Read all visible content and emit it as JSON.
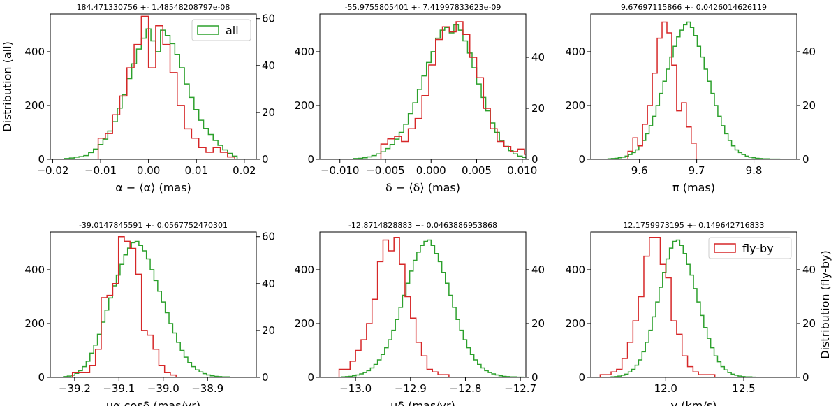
{
  "colors": {
    "all": "#2ca02c",
    "flyby": "#d62728"
  },
  "chart_data": [
    {
      "type": "histogram",
      "title": "184.471330756 +- 1.48548208797e-08",
      "xlabel": "α − ⟨α⟩ (mas)",
      "ylabel_left": "Distribution (all)",
      "ylabel_right": "",
      "legend": {
        "label": "all",
        "position": "top-right"
      },
      "xlim": [
        -0.0205,
        0.0225
      ],
      "ylim_left": [
        0,
        540
      ],
      "ylim_right": [
        0,
        62
      ],
      "xticks": [
        -0.02,
        -0.01,
        0.0,
        0.01,
        0.02
      ],
      "xtick_labels": [
        "−0.02",
        "−0.01",
        "0.00",
        "0.01",
        "0.02"
      ],
      "yticks_left": [
        0,
        200,
        400
      ],
      "yticks_right": [
        0,
        20,
        40,
        60
      ],
      "series": [
        {
          "name": "all",
          "axis": "left",
          "color": "#2ca02c",
          "bin_start": -0.0175,
          "bin_width": 0.001,
          "values": [
            3,
            5,
            8,
            10,
            14,
            25,
            38,
            55,
            75,
            105,
            140,
            190,
            240,
            300,
            355,
            410,
            450,
            485,
            440,
            400,
            480,
            460,
            430,
            390,
            340,
            280,
            230,
            185,
            145,
            115,
            92,
            70,
            52,
            35,
            22,
            12
          ]
        },
        {
          "name": "fly-by",
          "axis": "right",
          "color": "#d62728",
          "bin_start": -0.0105,
          "bin_width": 0.0015,
          "values": [
            9,
            11,
            19,
            27,
            39,
            49,
            61,
            39,
            57,
            49,
            37,
            23,
            13,
            9,
            5,
            3,
            5,
            3,
            1
          ]
        }
      ]
    },
    {
      "type": "histogram",
      "title": "-55.9755805401 +- 7.41997833623e-09",
      "xlabel": "δ − ⟨δ⟩ (mas)",
      "ylabel_left": "",
      "ylabel_right": "",
      "legend": null,
      "xlim": [
        -0.0122,
        0.0104
      ],
      "ylim_left": [
        0,
        540
      ],
      "ylim_right": [
        0,
        57
      ],
      "xticks": [
        -0.01,
        -0.005,
        0.0,
        0.005,
        0.01
      ],
      "xtick_labels": [
        "−0.010",
        "−0.005",
        "0.000",
        "0.005",
        "0.010"
      ],
      "yticks_left": [
        0,
        200,
        400
      ],
      "yticks_right": [
        0,
        20,
        40
      ],
      "series": [
        {
          "name": "all",
          "axis": "left",
          "color": "#2ca02c",
          "bin_start": -0.0085,
          "bin_width": 0.0005,
          "values": [
            3,
            4,
            6,
            9,
            14,
            20,
            28,
            40,
            55,
            75,
            100,
            130,
            170,
            210,
            260,
            310,
            360,
            400,
            450,
            480,
            490,
            470,
            500,
            480,
            440,
            395,
            340,
            280,
            230,
            180,
            135,
            100,
            70,
            48,
            32,
            20,
            12,
            7
          ]
        },
        {
          "name": "fly-by",
          "axis": "right",
          "color": "#d62728",
          "bin_start": -0.0055,
          "bin_width": 0.00075,
          "values": [
            6,
            8,
            9,
            7,
            12,
            16,
            25,
            37,
            47,
            52,
            50,
            54,
            49,
            40,
            32,
            20,
            12,
            7,
            5,
            3,
            4,
            2
          ]
        }
      ]
    },
    {
      "type": "histogram",
      "title": "9.67697115866 +- 0.0426014626119",
      "xlabel": "π (mas)",
      "ylabel_left": "",
      "ylabel_right": "",
      "legend": null,
      "xlim": [
        9.515,
        9.875
      ],
      "ylim_left": [
        0,
        540
      ],
      "ylim_right": [
        0,
        54
      ],
      "xticks": [
        9.6,
        9.7,
        9.8
      ],
      "xtick_labels": [
        "9.6",
        "9.7",
        "9.8"
      ],
      "yticks_left": [
        0,
        200,
        400
      ],
      "yticks_right": [
        0,
        20,
        40
      ],
      "series": [
        {
          "name": "all",
          "axis": "left",
          "color": "#2ca02c",
          "bin_start": 9.545,
          "bin_width": 0.006,
          "values": [
            2,
            3,
            4,
            6,
            8,
            12,
            18,
            25,
            35,
            50,
            70,
            95,
            125,
            160,
            200,
            245,
            290,
            335,
            380,
            420,
            455,
            480,
            500,
            510,
            490,
            460,
            420,
            380,
            335,
            290,
            245,
            200,
            160,
            125,
            95,
            70,
            50,
            35,
            25,
            18,
            12,
            8,
            6,
            4,
            3,
            2,
            2,
            1,
            1,
            1,
            0,
            0,
            0,
            0,
            0,
            0
          ]
        },
        {
          "name": "fly-by",
          "axis": "right",
          "color": "#d62728",
          "bin_start": 9.58,
          "bin_width": 0.0085,
          "values": [
            3,
            8,
            5,
            13,
            20,
            32,
            45,
            51,
            47,
            35,
            18,
            21,
            12,
            6,
            0,
            0,
            0,
            0
          ]
        }
      ]
    },
    {
      "type": "histogram",
      "title": "-39.0147845591 +- 0.0567752470301",
      "xlabel": "μα cosδ (mas/yr)",
      "ylabel_left": "",
      "ylabel_right": "",
      "legend": null,
      "xlim": [
        -39.255,
        -38.79
      ],
      "ylim_left": [
        0,
        540
      ],
      "ylim_right": [
        0,
        62
      ],
      "xticks": [
        -39.2,
        -39.1,
        -39.0,
        -38.9
      ],
      "xtick_labels": [
        "−39.2",
        "−39.1",
        "−39.0",
        "−38.9"
      ],
      "yticks_left": [
        0,
        200,
        400
      ],
      "yticks_right": [
        0,
        20,
        40,
        60
      ],
      "series": [
        {
          "name": "all",
          "axis": "left",
          "color": "#2ca02c",
          "bin_start": -39.225,
          "bin_width": 0.0085,
          "values": [
            3,
            5,
            8,
            15,
            25,
            40,
            60,
            90,
            120,
            160,
            205,
            250,
            295,
            340,
            380,
            420,
            455,
            480,
            500,
            505,
            490,
            470,
            440,
            400,
            360,
            320,
            280,
            240,
            200,
            165,
            130,
            100,
            75,
            55,
            40,
            28,
            20,
            14,
            9,
            6,
            4,
            3,
            2,
            2
          ]
        },
        {
          "name": "fly-by",
          "axis": "right",
          "color": "#d62728",
          "bin_start": -39.205,
          "bin_width": 0.013,
          "values": [
            2,
            2,
            2,
            5,
            12,
            34,
            35,
            40,
            60,
            58,
            55,
            44,
            20,
            18,
            12,
            5,
            2,
            1,
            0
          ]
        }
      ]
    },
    {
      "type": "histogram",
      "title": "-12.8714828883 +- 0.0463886953868",
      "xlabel": "μδ (mas/yr)",
      "ylabel_left": "",
      "ylabel_right": "",
      "legend": null,
      "xlim": [
        -13.065,
        -12.69
      ],
      "ylim_left": [
        0,
        540
      ],
      "ylim_right": [
        0,
        54
      ],
      "xticks": [
        -13.0,
        -12.9,
        -12.8,
        -12.7
      ],
      "xtick_labels": [
        "−13.0",
        "−12.9",
        "−12.8",
        "−12.7"
      ],
      "yticks_left": [
        0,
        200,
        400
      ],
      "yticks_right": [
        0,
        20,
        40
      ],
      "series": [
        {
          "name": "all",
          "axis": "left",
          "color": "#2ca02c",
          "bin_start": -13.025,
          "bin_width": 0.0065,
          "values": [
            2,
            3,
            4,
            6,
            9,
            13,
            18,
            25,
            35,
            48,
            65,
            85,
            110,
            140,
            175,
            215,
            260,
            305,
            350,
            395,
            435,
            465,
            490,
            505,
            510,
            490,
            460,
            430,
            390,
            350,
            305,
            260,
            215,
            175,
            140,
            110,
            85,
            65,
            48,
            35,
            25,
            18,
            13,
            9,
            6,
            4,
            3,
            2,
            2,
            1,
            1
          ]
        },
        {
          "name": "fly-by",
          "axis": "right",
          "color": "#d62728",
          "bin_start": -13.03,
          "bin_width": 0.01,
          "values": [
            3,
            3,
            6,
            10,
            14,
            20,
            29,
            43,
            51,
            47,
            52,
            42,
            30,
            22,
            13,
            8,
            3,
            2,
            1,
            1
          ]
        }
      ]
    },
    {
      "type": "histogram",
      "title": "12.1759973195 +- 0.149642716833",
      "xlabel": "γ (km/s)",
      "ylabel_left": "",
      "ylabel_right": "Distribution (fly-by)",
      "legend": {
        "label": "fly-by",
        "position": "top-right"
      },
      "xlim": [
        11.52,
        12.84
      ],
      "ylim_left": [
        0,
        540
      ],
      "ylim_right": [
        0,
        54
      ],
      "xticks": [
        12.0,
        12.5
      ],
      "xtick_labels": [
        "12.0",
        "12.5"
      ],
      "yticks_left": [
        0,
        200,
        400
      ],
      "yticks_right": [
        0,
        20,
        40
      ],
      "series": [
        {
          "name": "all",
          "axis": "left",
          "color": "#2ca02c",
          "bin_start": 11.65,
          "bin_width": 0.022,
          "values": [
            2,
            3,
            5,
            8,
            12,
            20,
            30,
            45,
            65,
            95,
            130,
            175,
            225,
            280,
            335,
            390,
            440,
            480,
            505,
            510,
            490,
            460,
            420,
            380,
            330,
            280,
            230,
            185,
            145,
            110,
            80,
            58,
            40,
            28,
            18,
            12,
            8,
            5,
            3,
            2,
            2,
            1
          ]
        },
        {
          "name": "fly-by",
          "axis": "right",
          "color": "#d62728",
          "bin_start": 11.58,
          "bin_width": 0.035,
          "values": [
            1,
            1,
            2,
            3,
            7,
            13,
            21,
            30,
            45,
            52,
            52,
            42,
            37,
            21,
            16,
            8,
            4,
            2,
            1,
            1,
            1,
            0
          ]
        }
      ]
    }
  ]
}
